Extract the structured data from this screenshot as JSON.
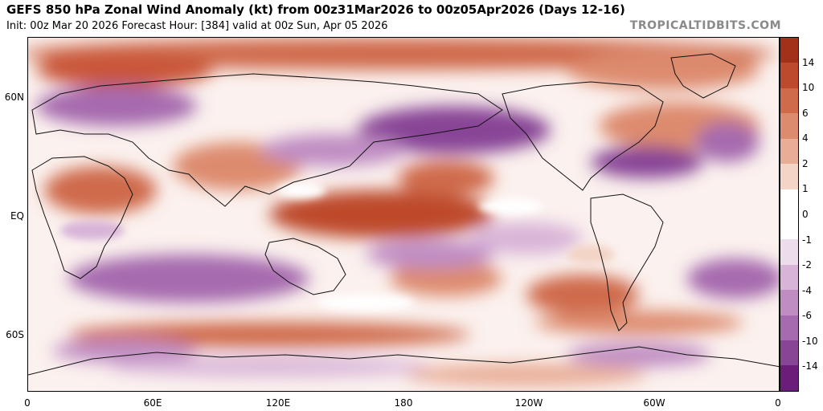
{
  "header": {
    "title": "GEFS 850 hPa Zonal Wind Anomaly (kt) from 00z31Mar2026 to 00z05Apr2026 (Days 12-16)",
    "subtitle": "Init: 00z Mar 20 2026   Forecast Hour: [384]   valid at 00z Sun, Apr 05 2026",
    "brand": "TROPICALTIDBITS.COM"
  },
  "map": {
    "lat_labels": [
      "60N",
      "EQ",
      "60S"
    ],
    "lon_labels": [
      "0",
      "60E",
      "120E",
      "180",
      "120W",
      "60W",
      "0"
    ]
  },
  "colorbar": {
    "unit": "kt",
    "labels": [
      "14",
      "10",
      "6",
      "4",
      "2",
      "1",
      "0",
      "-1",
      "-2",
      "-4",
      "-6",
      "-10",
      "-14"
    ],
    "colors": [
      "#a2311a",
      "#bd4a2c",
      "#cf6a4b",
      "#dd8b6e",
      "#e8ad96",
      "#f3d4c6",
      "#ffffff",
      "#ffffff",
      "#ecdcec",
      "#d8b4d8",
      "#c08dc3",
      "#a66aae",
      "#884596",
      "#6b1d7a"
    ],
    "positive_color": "#c9573b",
    "negative_color": "#8a4a9b"
  }
}
